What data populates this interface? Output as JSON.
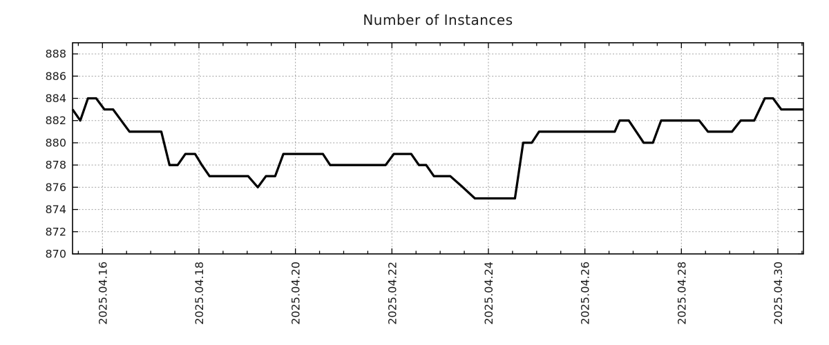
{
  "page": {
    "background": "#ffffff"
  },
  "chart_data": {
    "type": "line",
    "title": "Number of Instances",
    "xlabel": "",
    "ylabel": "",
    "legend": "none",
    "grid": "dotted",
    "x_axis": {
      "tick_labels": [
        "2025.04.16",
        "2025.04.18",
        "2025.04.20",
        "2025.04.22",
        "2025.04.24",
        "2025.04.26",
        "2025.04.28",
        "2025.04.30"
      ],
      "tick_days": [
        16,
        18,
        20,
        22,
        24,
        26,
        28,
        30
      ],
      "minor_tick_step_days": 0.5,
      "range_days": [
        15.38,
        30.53
      ]
    },
    "y_axis": {
      "ticks": [
        870,
        872,
        874,
        876,
        878,
        880,
        882,
        884,
        886,
        888
      ],
      "range": [
        870,
        889
      ]
    },
    "series": [
      {
        "name": "instances",
        "points": [
          [
            15.38,
            883
          ],
          [
            15.54,
            882
          ],
          [
            15.7,
            884
          ],
          [
            15.87,
            884
          ],
          [
            16.04,
            883
          ],
          [
            16.22,
            883
          ],
          [
            16.39,
            882
          ],
          [
            16.56,
            881
          ],
          [
            17.22,
            881
          ],
          [
            17.39,
            878
          ],
          [
            17.56,
            878
          ],
          [
            17.72,
            879
          ],
          [
            17.92,
            879
          ],
          [
            18.06,
            878
          ],
          [
            18.22,
            877
          ],
          [
            19.02,
            877
          ],
          [
            19.22,
            876
          ],
          [
            19.39,
            877
          ],
          [
            19.58,
            877
          ],
          [
            19.75,
            879
          ],
          [
            20.57,
            879
          ],
          [
            20.72,
            878
          ],
          [
            21.87,
            878
          ],
          [
            22.04,
            879
          ],
          [
            22.4,
            879
          ],
          [
            22.56,
            878
          ],
          [
            22.71,
            878
          ],
          [
            22.87,
            877
          ],
          [
            23.21,
            877
          ],
          [
            23.47,
            876
          ],
          [
            23.72,
            875
          ],
          [
            24.55,
            875
          ],
          [
            24.72,
            880
          ],
          [
            24.9,
            880
          ],
          [
            25.05,
            881
          ],
          [
            26.62,
            881
          ],
          [
            26.72,
            882
          ],
          [
            26.91,
            882
          ],
          [
            27.22,
            880
          ],
          [
            27.41,
            880
          ],
          [
            27.58,
            882
          ],
          [
            28.37,
            882
          ],
          [
            28.55,
            881
          ],
          [
            29.05,
            881
          ],
          [
            29.23,
            882
          ],
          [
            29.51,
            882
          ],
          [
            29.73,
            884
          ],
          [
            29.9,
            884
          ],
          [
            30.07,
            883
          ],
          [
            30.53,
            883
          ]
        ]
      }
    ],
    "colors": {
      "line": "#000000",
      "grid": "#a0a0a0",
      "axis": "#000000",
      "text": "#1c1c1c"
    }
  }
}
